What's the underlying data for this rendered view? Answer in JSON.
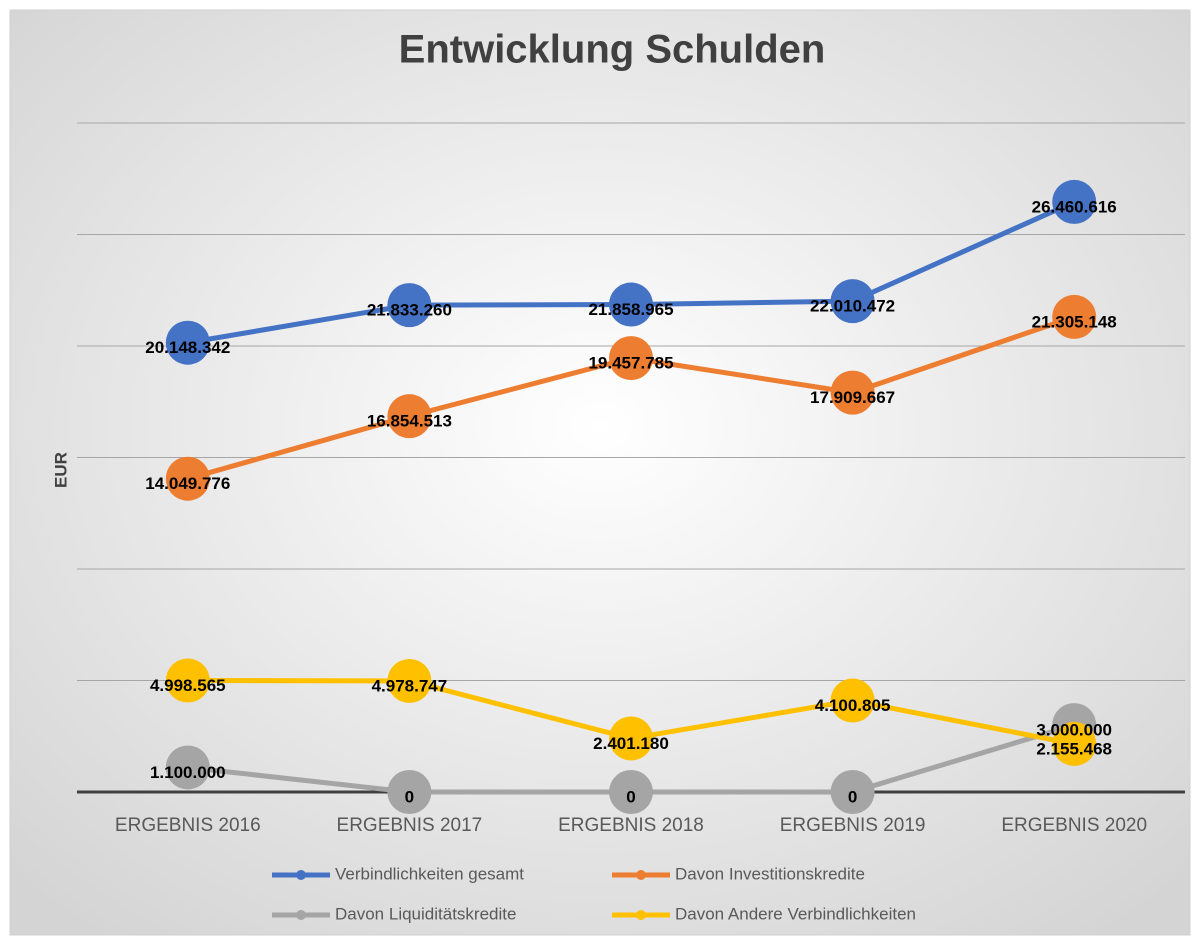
{
  "chart_data": {
    "type": "line",
    "title": "Entwicklung Schulden",
    "y_label": "EUR",
    "categories": [
      "ERGEBNIS 2016",
      "ERGEBNIS 2017",
      "ERGEBNIS 2018",
      "ERGEBNIS 2019",
      "ERGEBNIS 2020"
    ],
    "series": [
      {
        "name": "Verbindlichkeiten gesamt",
        "color": "#4472c4",
        "values": [
          20148342,
          21833260,
          21858965,
          22010472,
          26460616
        ],
        "value_labels": [
          "20.148.342",
          "21.833.260",
          "21.858.965",
          "22.010.472",
          "26.460.616"
        ]
      },
      {
        "name": "Davon Investitionskredite",
        "color": "#ed7d31",
        "values": [
          14049776,
          16854513,
          19457785,
          17909667,
          21305148
        ],
        "value_labels": [
          "14.049.776",
          "16.854.513",
          "19.457.785",
          "17.909.667",
          "21.305.148"
        ]
      },
      {
        "name": "Davon Liquiditätskredite",
        "color": "#a5a5a5",
        "values": [
          1100000,
          0,
          0,
          0,
          3000000
        ],
        "value_labels": [
          "1.100.000",
          "0",
          "0",
          "0",
          "3.000.000"
        ]
      },
      {
        "name": "Davon Andere Verbindlichkeiten",
        "color": "#ffc000",
        "values": [
          4998565,
          4978747,
          2401180,
          4100805,
          2155468
        ],
        "value_labels": [
          "4.998.565",
          "4.978.747",
          "2.401.180",
          "4.100.805",
          "2.155.468"
        ]
      }
    ],
    "ylim": [
      0,
      30000000
    ],
    "yticks": [
      0,
      5000000,
      10000000,
      15000000,
      20000000,
      25000000,
      30000000
    ],
    "grid": true,
    "legend": "bottom"
  }
}
